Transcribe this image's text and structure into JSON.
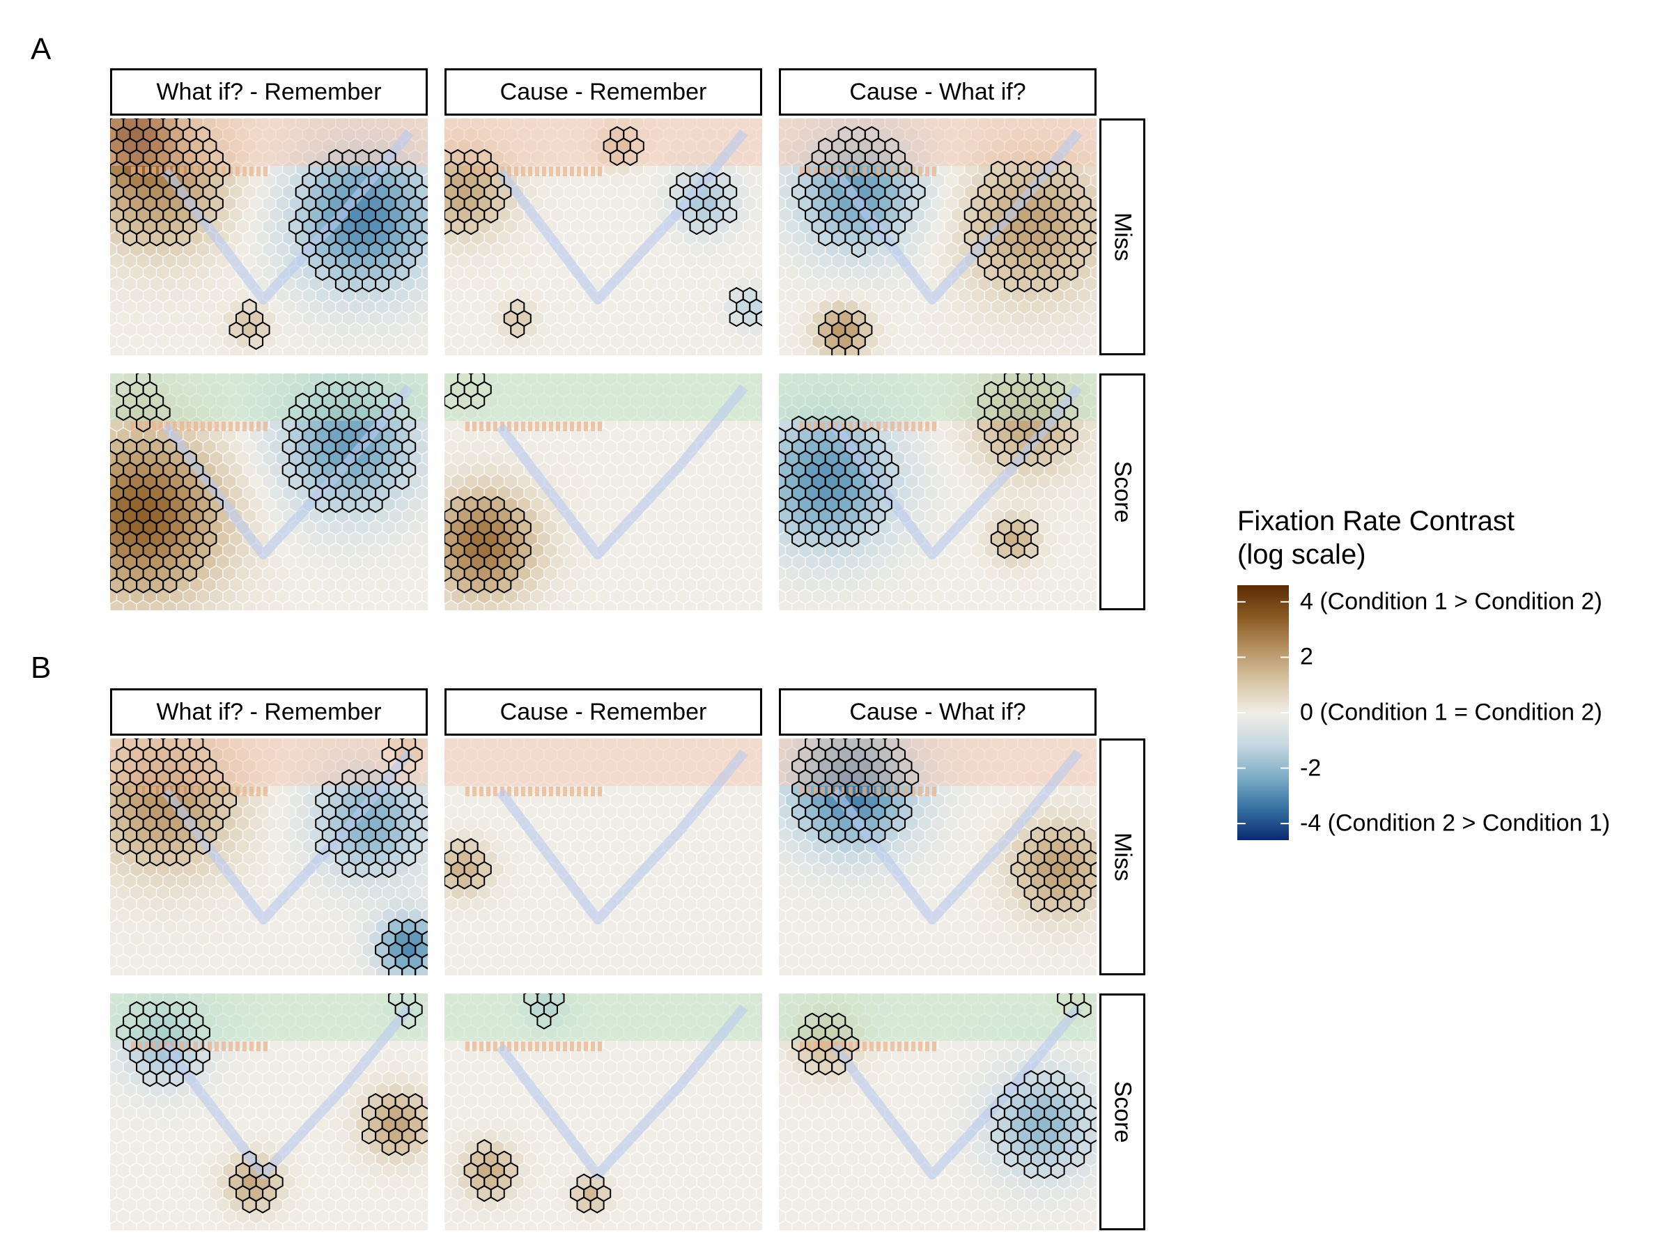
{
  "panels": [
    {
      "label": "A",
      "columns": [
        "What if? - Remember",
        "Cause - Remember",
        "Cause - What if?"
      ],
      "rows": [
        "Miss",
        "Score"
      ]
    },
    {
      "label": "B",
      "columns": [
        "What if? - Remember",
        "Cause - Remember",
        "Cause - What if?"
      ],
      "rows": [
        "Miss",
        "Score"
      ]
    }
  ],
  "colors": {
    "scale": [
      "#5a2a05",
      "#8a5a22",
      "#b79263",
      "#d7c4a4",
      "#f0ede6",
      "#c6d8e2",
      "#7eaec7",
      "#3672a3",
      "#0a2a6e"
    ],
    "hex_outline": "#ffffff",
    "significant_outline": "#000000",
    "top_tint_miss": "#f3c4ad",
    "top_tint_score": "#b8e2c0",
    "arrow": "#b9c9ee",
    "dotted_line": "#eab38c"
  },
  "chart_data": {
    "type": "heatmap",
    "description_of_marks": "hexagonal bins; outlined hexes are significant",
    "legend": {
      "title_line1": "Fixation Rate Contrast",
      "title_line2": "(log scale)",
      "range": [
        -4.6,
        4.6
      ],
      "ticks": [
        {
          "value": 4,
          "label": "4 (Condition 1 > Condition 2)"
        },
        {
          "value": 2,
          "label": "2"
        },
        {
          "value": 0,
          "label": "0 (Condition 1 = Condition 2)"
        },
        {
          "value": -2,
          "label": "-2"
        },
        {
          "value": -4,
          "label": "-4 (Condition 2 > Condition 1)"
        }
      ]
    },
    "facets": [
      {
        "panel": "A",
        "column": "What if? - Remember",
        "row": "Miss",
        "blobs": [
          {
            "x": 0.15,
            "y": 0.25,
            "v": 2.3,
            "r": 0.22,
            "sig": true
          },
          {
            "x": 0.07,
            "y": 0.05,
            "v": 3.2,
            "r": 0.12,
            "sig": true
          },
          {
            "x": 0.8,
            "y": 0.42,
            "v": -3.0,
            "r": 0.23,
            "sig": true
          },
          {
            "x": 0.44,
            "y": 0.87,
            "v": 1.2,
            "r": 0.06,
            "sig": true
          }
        ]
      },
      {
        "panel": "A",
        "column": "Cause - Remember",
        "row": "Miss",
        "blobs": [
          {
            "x": 0.06,
            "y": 0.3,
            "v": 1.8,
            "r": 0.14,
            "sig": true
          },
          {
            "x": 0.55,
            "y": 0.12,
            "v": 1.4,
            "r": 0.06,
            "sig": true
          },
          {
            "x": 0.82,
            "y": 0.35,
            "v": -1.6,
            "r": 0.1,
            "sig": true
          },
          {
            "x": 0.96,
            "y": 0.8,
            "v": -1.2,
            "r": 0.06,
            "sig": true
          },
          {
            "x": 0.23,
            "y": 0.85,
            "v": 1.0,
            "r": 0.05,
            "sig": true
          }
        ]
      },
      {
        "panel": "A",
        "column": "Cause - What if?",
        "row": "Miss",
        "blobs": [
          {
            "x": 0.25,
            "y": 0.3,
            "v": -2.6,
            "r": 0.2,
            "sig": true
          },
          {
            "x": 0.8,
            "y": 0.45,
            "v": 1.9,
            "r": 0.22,
            "sig": true
          },
          {
            "x": 0.2,
            "y": 0.9,
            "v": 2.2,
            "r": 0.08,
            "sig": true
          }
        ]
      },
      {
        "panel": "A",
        "column": "What if? - Remember",
        "row": "Score",
        "blobs": [
          {
            "x": 0.1,
            "y": 0.6,
            "v": 3.3,
            "r": 0.25,
            "sig": true
          },
          {
            "x": 0.1,
            "y": 0.12,
            "v": 0.5,
            "r": 0.08,
            "sig": true
          },
          {
            "x": 0.75,
            "y": 0.3,
            "v": -2.6,
            "r": 0.22,
            "sig": true
          }
        ]
      },
      {
        "panel": "A",
        "column": "Cause - Remember",
        "row": "Score",
        "blobs": [
          {
            "x": 0.12,
            "y": 0.72,
            "v": 3.0,
            "r": 0.16,
            "sig": true
          },
          {
            "x": 0.07,
            "y": 0.08,
            "v": 0.4,
            "r": 0.06,
            "sig": true
          }
        ]
      },
      {
        "panel": "A",
        "column": "Cause - What if?",
        "row": "Score",
        "blobs": [
          {
            "x": 0.15,
            "y": 0.45,
            "v": -2.8,
            "r": 0.22,
            "sig": true
          },
          {
            "x": 0.78,
            "y": 0.2,
            "v": 1.8,
            "r": 0.16,
            "sig": true
          },
          {
            "x": 0.74,
            "y": 0.7,
            "v": 1.6,
            "r": 0.07,
            "sig": true
          }
        ]
      },
      {
        "panel": "B",
        "column": "What if? - Remember",
        "row": "Miss",
        "blobs": [
          {
            "x": 0.17,
            "y": 0.25,
            "v": 2.2,
            "r": 0.22,
            "sig": true
          },
          {
            "x": 0.82,
            "y": 0.35,
            "v": -2.2,
            "r": 0.18,
            "sig": true
          },
          {
            "x": 0.94,
            "y": 0.88,
            "v": -3.0,
            "r": 0.1,
            "sig": true
          },
          {
            "x": 0.93,
            "y": 0.06,
            "v": 1.4,
            "r": 0.06,
            "sig": true
          }
        ]
      },
      {
        "panel": "B",
        "column": "Cause - Remember",
        "row": "Miss",
        "blobs": [
          {
            "x": 0.06,
            "y": 0.55,
            "v": 1.6,
            "r": 0.08,
            "sig": true
          }
        ]
      },
      {
        "panel": "B",
        "column": "Cause - What if?",
        "row": "Miss",
        "blobs": [
          {
            "x": 0.23,
            "y": 0.2,
            "v": -3.3,
            "r": 0.2,
            "sig": true
          },
          {
            "x": 0.88,
            "y": 0.55,
            "v": 2.0,
            "r": 0.14,
            "sig": true
          }
        ]
      },
      {
        "panel": "B",
        "column": "What if? - Remember",
        "row": "Score",
        "blobs": [
          {
            "x": 0.17,
            "y": 0.2,
            "v": -1.8,
            "r": 0.14,
            "sig": true
          },
          {
            "x": 0.9,
            "y": 0.55,
            "v": 1.9,
            "r": 0.1,
            "sig": true
          },
          {
            "x": 0.45,
            "y": 0.8,
            "v": 1.8,
            "r": 0.08,
            "sig": true
          },
          {
            "x": 0.93,
            "y": 0.06,
            "v": -0.8,
            "r": 0.05,
            "sig": true
          }
        ]
      },
      {
        "panel": "B",
        "column": "Cause - Remember",
        "row": "Score",
        "blobs": [
          {
            "x": 0.32,
            "y": 0.05,
            "v": -1.6,
            "r": 0.06,
            "sig": true
          },
          {
            "x": 0.14,
            "y": 0.75,
            "v": 1.7,
            "r": 0.08,
            "sig": true
          },
          {
            "x": 0.46,
            "y": 0.85,
            "v": 1.4,
            "r": 0.05,
            "sig": true
          }
        ]
      },
      {
        "panel": "B",
        "column": "Cause - What if?",
        "row": "Score",
        "blobs": [
          {
            "x": 0.15,
            "y": 0.2,
            "v": 1.3,
            "r": 0.1,
            "sig": true
          },
          {
            "x": 0.83,
            "y": 0.55,
            "v": -2.0,
            "r": 0.17,
            "sig": true
          },
          {
            "x": 0.93,
            "y": 0.04,
            "v": 0.5,
            "r": 0.05,
            "sig": true
          }
        ]
      }
    ]
  }
}
